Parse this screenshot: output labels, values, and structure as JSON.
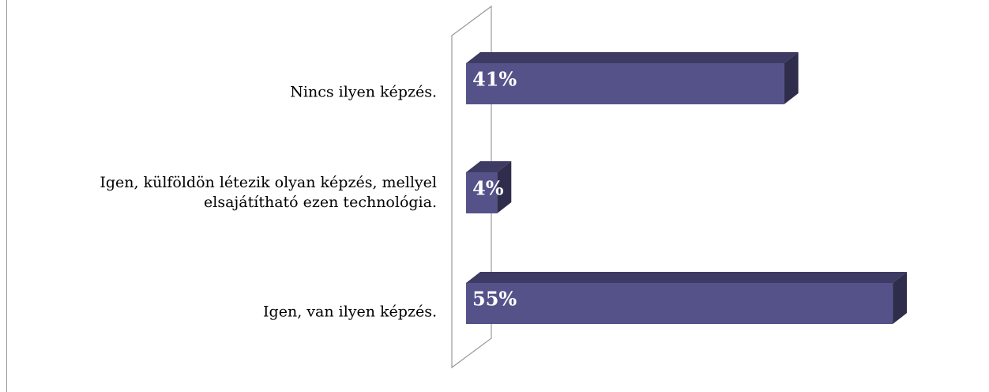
{
  "chart_data": {
    "type": "bar3d_horizontal",
    "categories": [
      "Nincs ilyen képzés.",
      "Igen, külföldön létezik olyan képzés, mellyel elsajátítható ezen technológia.",
      "Igen, van ilyen képzés."
    ],
    "values": [
      41,
      4,
      55
    ],
    "value_labels": [
      "41%",
      "4%",
      "55%"
    ],
    "color": "#55528a"
  }
}
